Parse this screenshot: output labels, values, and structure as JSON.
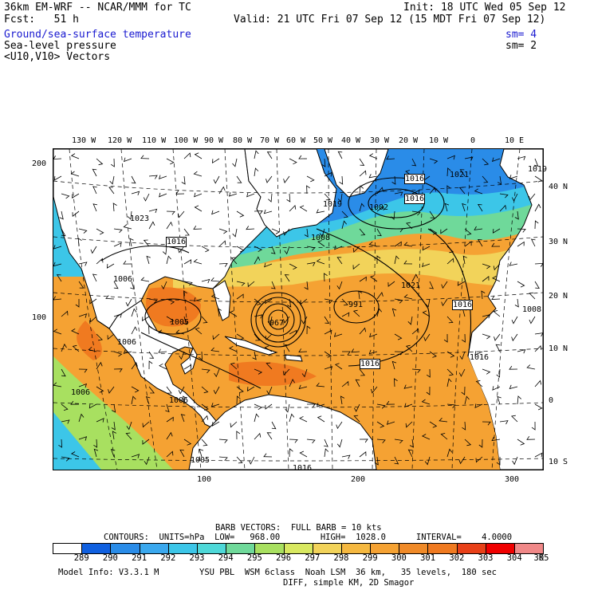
{
  "header": {
    "model_line": "36km EM-WRF -- NCAR/MMM for TC",
    "init": "Init: 18 UTC Wed 05 Sep 12",
    "fcst": "Fcst:   51 h",
    "valid": "Valid: 21 UTC Fri 07 Sep 12 (15 MDT Fri 07 Sep 12)",
    "field1": "Ground/sea-surface temperature",
    "field1_sm": "sm= 4",
    "field2": "Sea-level pressure",
    "field2_sm": "sm= 2",
    "field3": "<U10,V10> Vectors"
  },
  "map": {
    "lon_labels": [
      "130 W",
      "120 W",
      "110 W",
      "100 W",
      "90 W",
      "80 W",
      "70 W",
      "60 W",
      "50 W",
      "40 W",
      "30 W",
      "20 W",
      "10 W",
      "0",
      "10 E"
    ],
    "lat_labels": [
      "40 N",
      "30 N",
      "20 N",
      "10 N",
      "0",
      "10 S"
    ],
    "grid_left_labels": [
      "200",
      "100"
    ],
    "grid_bottom_labels": [
      "100",
      "200",
      "300"
    ],
    "pressure_labels": [
      "1023",
      "1016",
      "1006",
      "1005",
      "1006",
      "1006",
      "1005",
      "967",
      "991",
      "1016",
      "1021",
      "1016",
      "1008",
      "1016",
      "1002",
      "1016",
      "1021",
      "1019",
      "1008",
      "1016",
      "1006",
      "1016",
      "1019"
    ],
    "colors": {
      "land": "#ffffff",
      "ocean_cold": "#2a8ce8",
      "ocean_cool": "#3cc6e8",
      "ocean_mild": "#6fd99a",
      "ocean_warm": "#a8e060",
      "ocean_yellow": "#f2d35a",
      "ocean_orange": "#f5a233",
      "ocean_hot": "#f07a20",
      "contour": "#000000"
    }
  },
  "footer": {
    "barb_title": "BARB VECTORS:  FULL BARB = 10 kts",
    "contours": "CONTOURS:  UNITS=hPa  LOW=   968.00        HIGH=  1028.0      INTERVAL=    4.0000",
    "colorbar": {
      "colors": [
        "#ffffff",
        "#1060e0",
        "#2a8ce8",
        "#3aa8ee",
        "#3cc6e8",
        "#4ed8d8",
        "#6fd99a",
        "#a8e060",
        "#d8e860",
        "#f2d35a",
        "#f5b840",
        "#f5a233",
        "#f08a28",
        "#f07a20",
        "#e84018",
        "#f00000",
        "#f08888"
      ],
      "labels": [
        "289",
        "290",
        "291",
        "292",
        "293",
        "294",
        "295",
        "296",
        "297",
        "298",
        "299",
        "300",
        "301",
        "302",
        "303",
        "304",
        "305",
        "K"
      ]
    },
    "model_info": "Model Info: V3.3.1 M        YSU PBL  WSM 6class  Noah LSM  36 km,   35 levels,  180 sec",
    "model_info2": "DIFF, simple KM, 2D Smagor"
  }
}
